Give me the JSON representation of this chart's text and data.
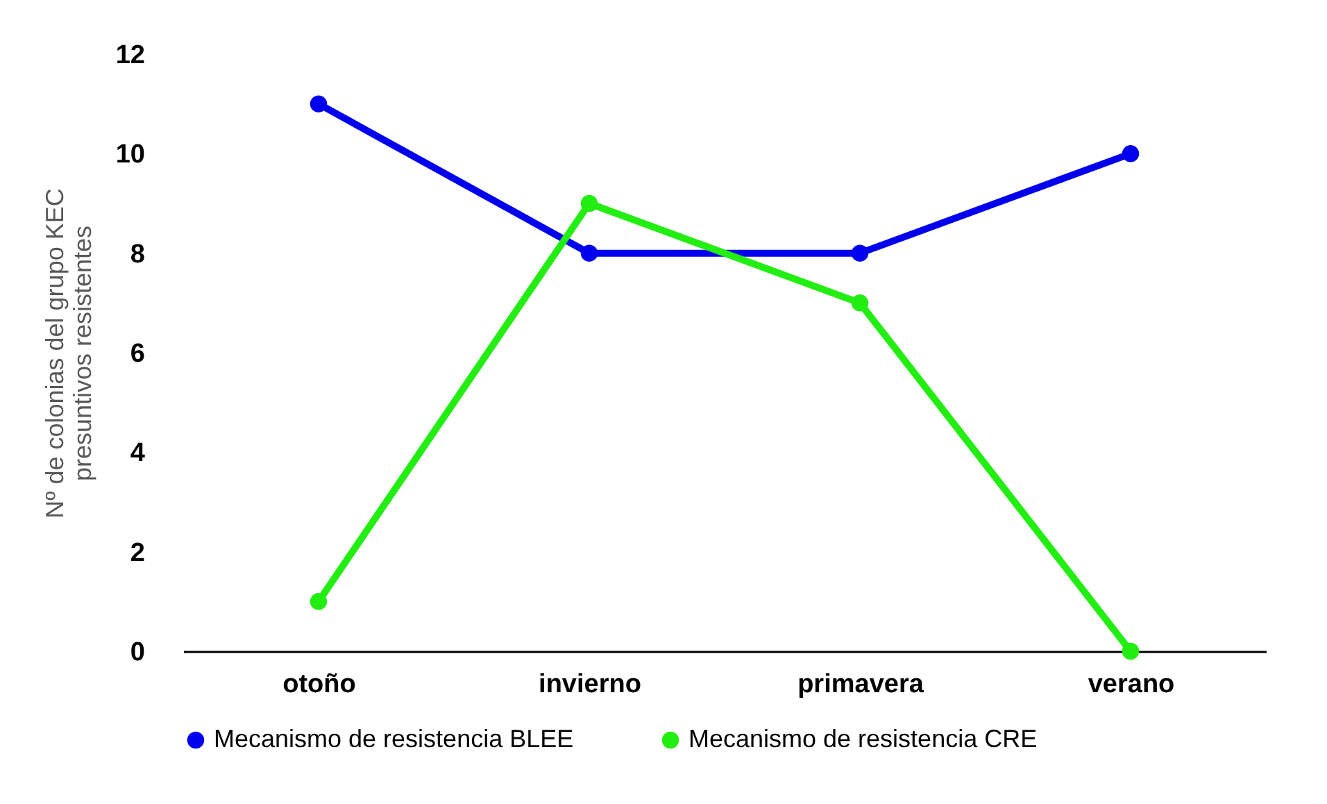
{
  "chart_data": {
    "type": "line",
    "ylabel": "Nº de colonias del grupo KEC\npresuntivos resistentes",
    "categories": [
      "otoño",
      "invierno",
      "primavera",
      "verano"
    ],
    "ylim": [
      0,
      12
    ],
    "yticks": [
      0,
      2,
      4,
      6,
      8,
      10,
      12
    ],
    "grid": false,
    "legend": "bottom",
    "marker": "circle",
    "line_style": "solid",
    "series": [
      {
        "name": "Mecanismo de resistencia BLEE",
        "color": "#0000ee",
        "values": [
          11,
          8,
          8,
          10
        ]
      },
      {
        "name": "Mecanismo de resistencia CRE",
        "color": "#22ee11",
        "values": [
          1,
          9,
          7,
          0
        ]
      }
    ]
  }
}
